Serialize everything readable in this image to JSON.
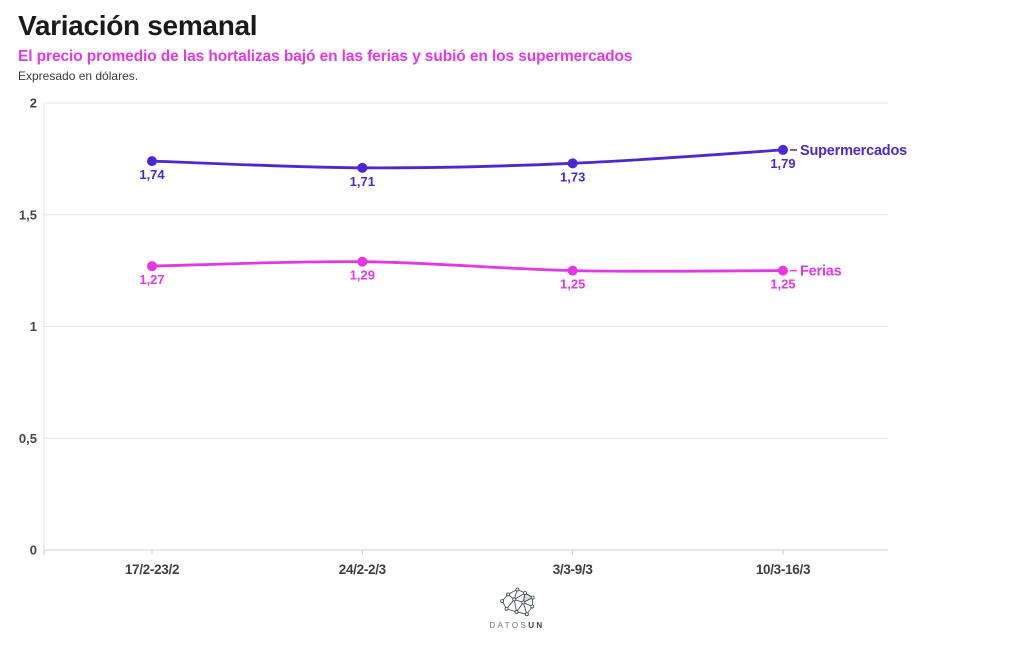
{
  "header": {
    "title": "Variación semanal",
    "subtitle": "El precio promedio de las hortalizas bajó en las ferias y subió en los supermercados",
    "note": "Expresado en dólares."
  },
  "chart_data": {
    "type": "line",
    "categories": [
      "17/2-23/2",
      "24/2-2/3",
      "3/3-9/3",
      "10/3-16/3"
    ],
    "series": [
      {
        "name": "Supermercados",
        "color": "#4b28d2",
        "values": [
          1.74,
          1.71,
          1.73,
          1.79
        ],
        "value_labels": [
          "1,74",
          "1,71",
          "1,73",
          "1,79"
        ]
      },
      {
        "name": "Ferias",
        "color": "#e637e6",
        "values": [
          1.27,
          1.29,
          1.25,
          1.25
        ],
        "value_labels": [
          "1,27",
          "1,29",
          "1,25",
          "1,25"
        ]
      }
    ],
    "title": "Variación semanal",
    "xlabel": "",
    "ylabel": "",
    "ylim": [
      0,
      2
    ],
    "yticks": {
      "values": [
        0,
        0.5,
        1,
        1.5,
        2
      ],
      "labels": [
        "0",
        "0,5",
        "1",
        "1,5",
        "2"
      ]
    },
    "grid": "horizontal",
    "legend": "direct-line-labels"
  },
  "colors": {
    "supermercados": "#4b28d2",
    "ferias": "#e637e6",
    "subtitle": "#e637e6",
    "grid": "#e3e3e3",
    "axis": "#cfcfcf",
    "tick_text": "#464646",
    "logo_dark": "#39434e"
  },
  "logo": {
    "icon": "network-icon",
    "brand_part1": "DATOS",
    "brand_part2": "UN"
  }
}
